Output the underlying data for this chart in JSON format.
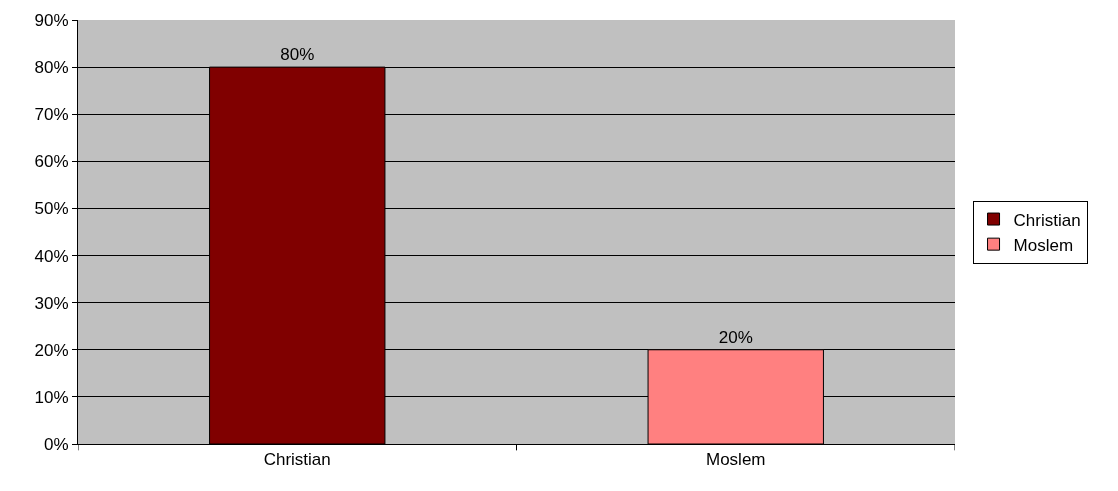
{
  "chart_data": {
    "type": "bar",
    "categories": [
      "Christian",
      "Moslem"
    ],
    "series": [
      {
        "name": "Christian",
        "color": "#800000",
        "values": [
          80,
          null
        ],
        "value_labels": [
          "80%",
          null
        ]
      },
      {
        "name": "Moslem",
        "color": "#ff8080",
        "values": [
          null,
          20
        ],
        "value_labels": [
          null,
          "20%"
        ]
      }
    ],
    "ylim": [
      0,
      90
    ],
    "yticks": [
      {
        "value": 0,
        "label": "0%"
      },
      {
        "value": 10,
        "label": "10%"
      },
      {
        "value": 20,
        "label": "20%"
      },
      {
        "value": 30,
        "label": "30%"
      },
      {
        "value": 40,
        "label": "40%"
      },
      {
        "value": 50,
        "label": "50%"
      },
      {
        "value": 60,
        "label": "60%"
      },
      {
        "value": 70,
        "label": "70%"
      },
      {
        "value": 80,
        "label": "80%"
      },
      {
        "value": 90,
        "label": "90%"
      }
    ],
    "grid": "y",
    "legend": "right"
  }
}
